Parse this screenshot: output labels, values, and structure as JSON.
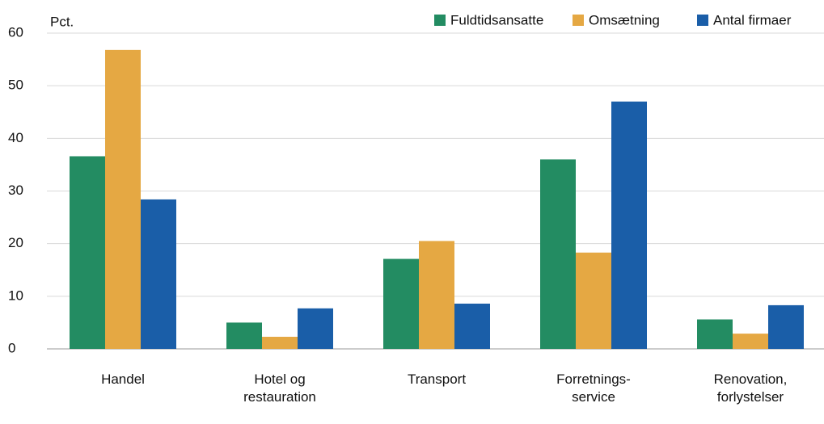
{
  "chart_data": {
    "type": "bar",
    "y_label": "Pct.",
    "categories": [
      "Handel",
      "Hotel og\nrestauration",
      "Transport",
      "Forretnings-\nservice",
      "Renovation,\nforlystelser"
    ],
    "series": [
      {
        "name": "Fuldtidsansatte",
        "color": "#238c62",
        "values": [
          36.6,
          5.0,
          17.1,
          36.0,
          5.6
        ]
      },
      {
        "name": "Omsætning",
        "color": "#e5a843",
        "values": [
          56.8,
          2.3,
          20.5,
          18.3,
          2.9
        ]
      },
      {
        "name": "Antal firmaer",
        "color": "#1a5ea8",
        "values": [
          28.4,
          7.7,
          8.6,
          47.0,
          8.3
        ]
      }
    ],
    "ylim": [
      0,
      60
    ],
    "yticks": [
      0,
      10,
      20,
      30,
      40,
      50,
      60
    ],
    "grid": true,
    "legend": "top-right"
  }
}
